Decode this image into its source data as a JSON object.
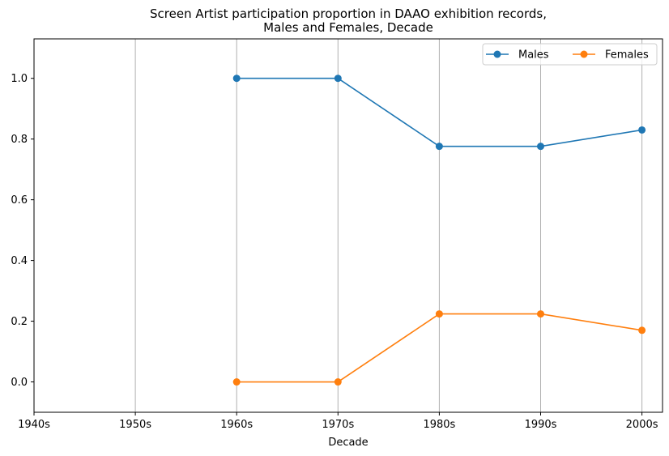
{
  "chart_data": {
    "type": "line",
    "title": "Screen Artist participation proportion in DAAO exhibition records,",
    "subtitle": "Males and Females, Decade",
    "xlabel": "Decade",
    "ylabel": "",
    "categories": [
      "1940s",
      "1950s",
      "1960s",
      "1970s",
      "1980s",
      "1990s",
      "2000s"
    ],
    "yticks": [
      "0.0",
      "0.2",
      "0.4",
      "0.6",
      "0.8",
      "1.0"
    ],
    "ylim": [
      -0.1,
      1.13
    ],
    "grid": "vertical",
    "legend_placement": "top-right",
    "series": [
      {
        "name": "Males",
        "color": "#1f77b4",
        "marker": "circle",
        "values": [
          null,
          null,
          1.0,
          1.0,
          0.776,
          0.776,
          0.83
        ]
      },
      {
        "name": "Females",
        "color": "#ff7f0e",
        "marker": "circle",
        "values": [
          null,
          null,
          0.0,
          0.0,
          0.224,
          0.224,
          0.17
        ]
      }
    ]
  }
}
